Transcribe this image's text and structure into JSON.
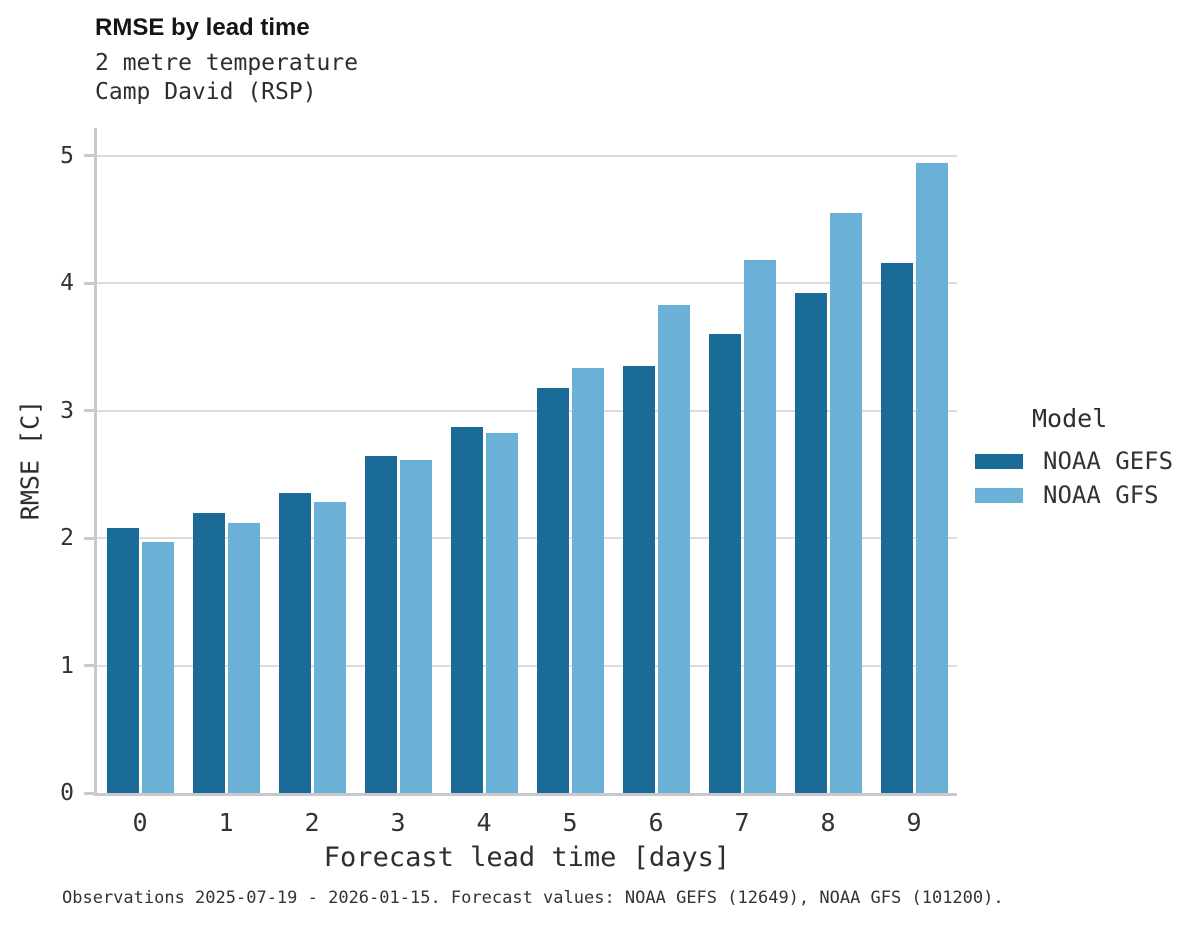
{
  "chart_data": {
    "type": "bar",
    "title": "RMSE by lead time",
    "subtitle_lines": [
      "2 metre temperature",
      "Camp David (RSP)"
    ],
    "categories": [
      "0",
      "1",
      "2",
      "3",
      "4",
      "5",
      "6",
      "7",
      "8",
      "9"
    ],
    "series": [
      {
        "name": "NOAA GEFS",
        "color": "#1a6b98",
        "values": [
          2.08,
          2.2,
          2.35,
          2.64,
          2.87,
          3.18,
          3.35,
          3.6,
          3.92,
          4.16
        ]
      },
      {
        "name": "NOAA GFS",
        "color": "#6bb0d7",
        "values": [
          1.97,
          2.12,
          2.28,
          2.61,
          2.82,
          3.33,
          3.83,
          4.18,
          4.55,
          4.94
        ]
      }
    ],
    "xlabel": "Forecast lead time [days]",
    "ylabel": "RMSE [C]",
    "ylim": [
      0,
      5
    ],
    "yticks": [
      "0",
      "1",
      "2",
      "3",
      "4",
      "5"
    ],
    "grid": true,
    "legend_title": "Model",
    "legend_position": "right",
    "caption": "Observations 2025-07-19 - 2026-01-15. Forecast values: NOAA GEFS (12649), NOAA GFS (101200)."
  },
  "colors": {
    "axis_line": "#c9c9c9",
    "gridline": "#dcdcdc",
    "title_text": "#151515",
    "body_text": "#333333"
  }
}
